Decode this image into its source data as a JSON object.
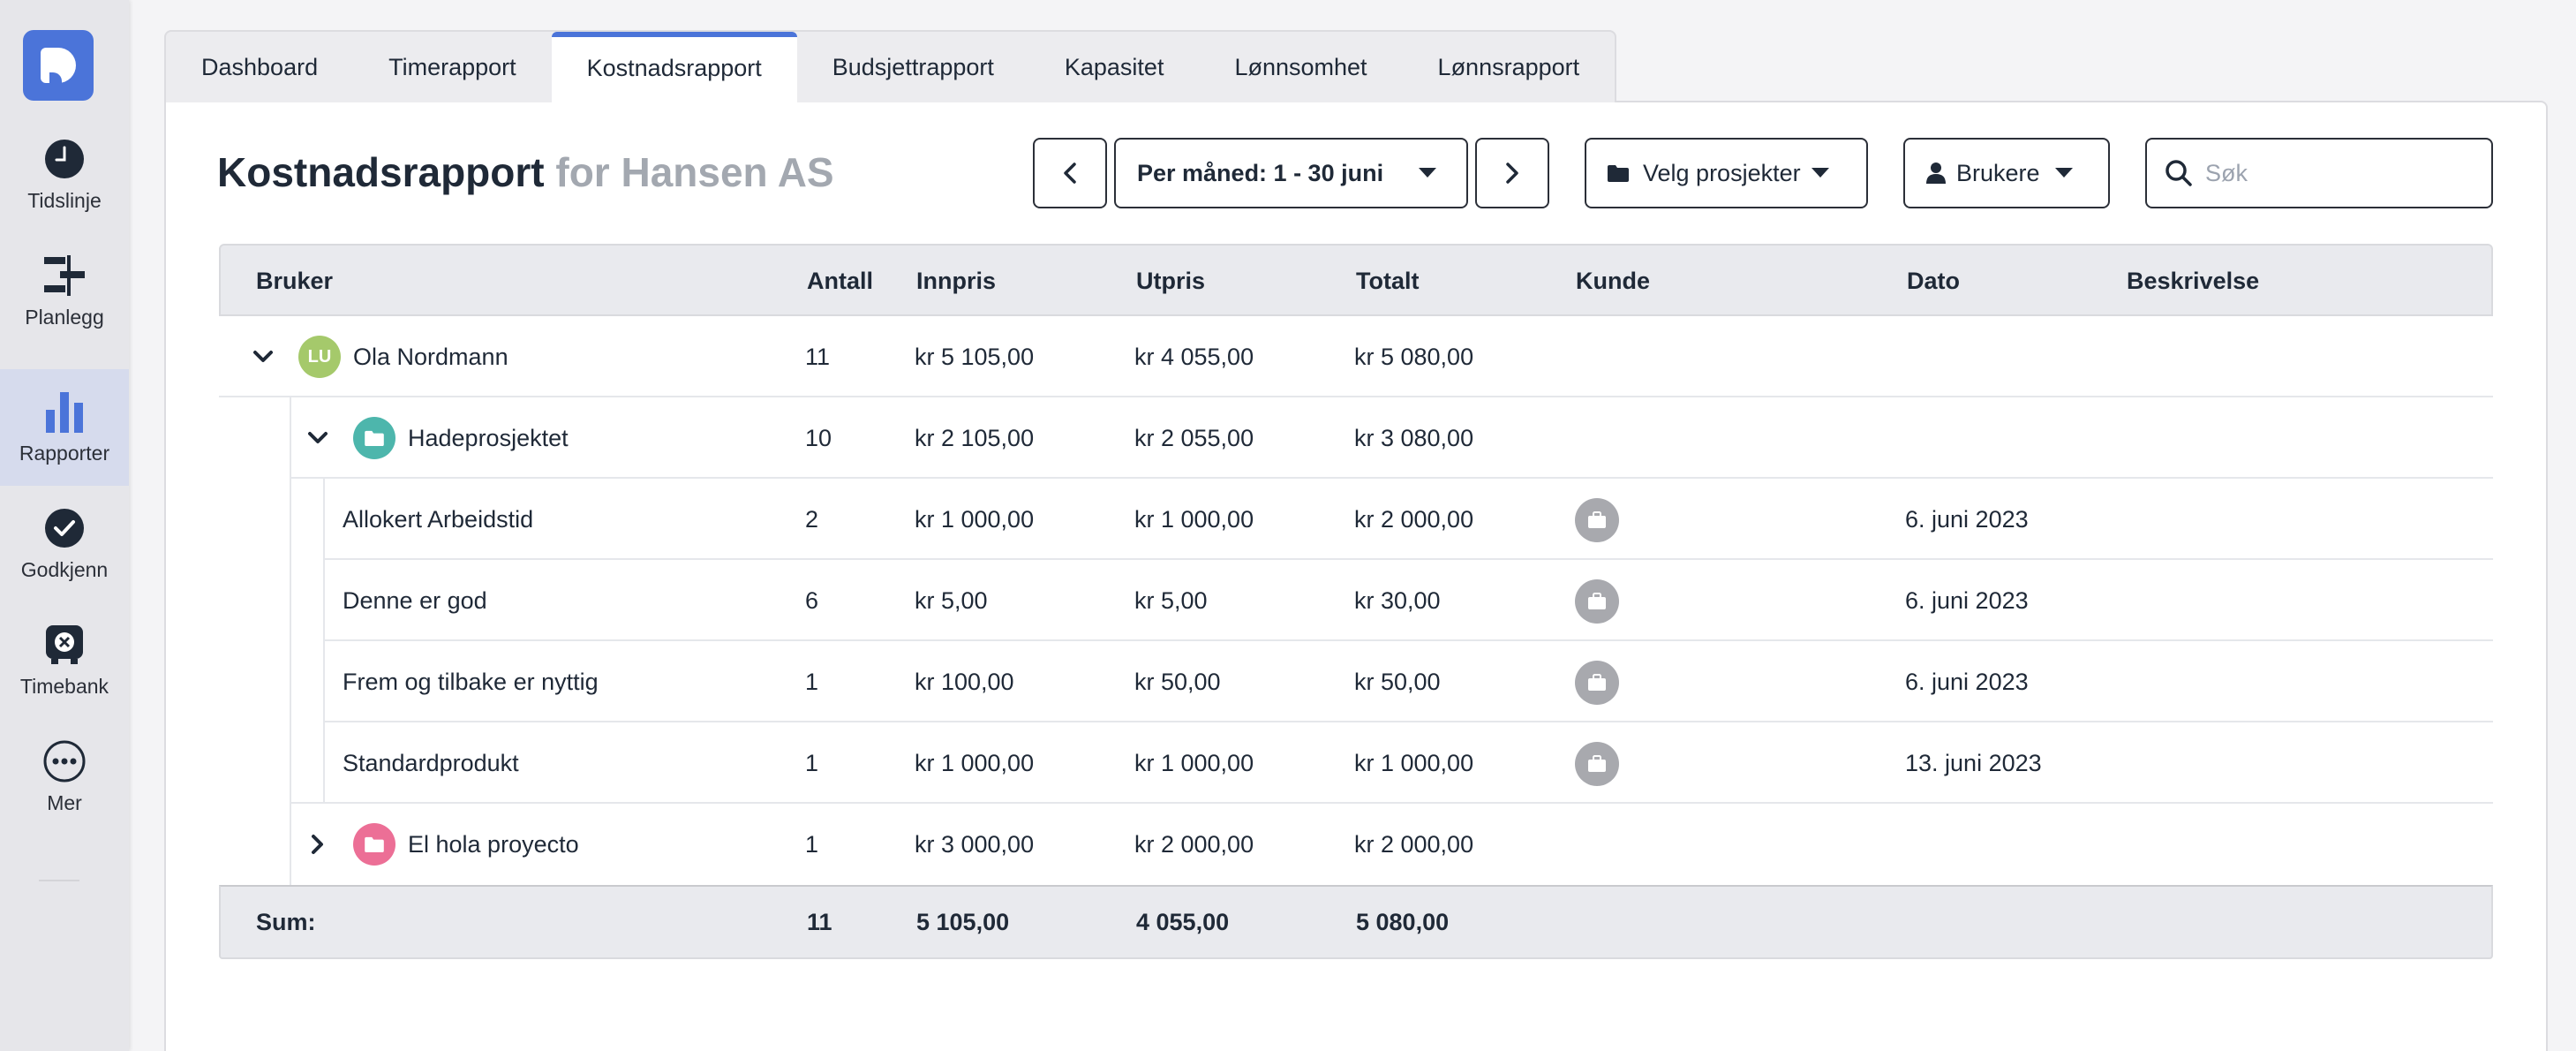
{
  "sidebar": {
    "items": [
      {
        "label": "Tidslinje",
        "icon": "clock-icon"
      },
      {
        "label": "Planlegg",
        "icon": "planner-icon"
      },
      {
        "label": "Rapporter",
        "icon": "bar-chart-icon",
        "active": true
      },
      {
        "label": "Godkjenn",
        "icon": "check-circle-icon"
      },
      {
        "label": "Timebank",
        "icon": "timebank-icon"
      },
      {
        "label": "Mer",
        "icon": "more-dots-icon"
      }
    ]
  },
  "tabs": [
    {
      "label": "Dashboard"
    },
    {
      "label": "Timerapport"
    },
    {
      "label": "Kostnadsrapport",
      "active": true
    },
    {
      "label": "Budsjettrapport"
    },
    {
      "label": "Kapasitet"
    },
    {
      "label": "Lønnsomhet"
    },
    {
      "label": "Lønnsrapport"
    }
  ],
  "header": {
    "title": "Kostnadsrapport",
    "subtitle": "for Hansen AS"
  },
  "filters": {
    "period": "Per måned: 1 - 30 juni",
    "projects": "Velg prosjekter",
    "users": "Brukere",
    "search_placeholder": "Søk"
  },
  "table": {
    "columns": [
      "Bruker",
      "Antall",
      "Innpris",
      "Utpris",
      "Totalt",
      "Kunde",
      "Dato",
      "Beskrivelse"
    ],
    "user_row": {
      "initials": "LU",
      "name": "Ola Nordmann",
      "antall": "11",
      "innpris": "kr 5 105,00",
      "utpris": "kr 4 055,00",
      "totalt": "kr 5 080,00"
    },
    "project_row": {
      "name": "Hadeprosjektet",
      "antall": "10",
      "innpris": "kr 2 105,00",
      "utpris": "kr 2 055,00",
      "totalt": "kr 3 080,00"
    },
    "items": [
      {
        "name": "Allokert Arbeidstid",
        "antall": "2",
        "innpris": "kr 1 000,00",
        "utpris": "kr 1 000,00",
        "totalt": "kr 2 000,00",
        "dato": "6. juni 2023"
      },
      {
        "name": "Denne er god",
        "antall": "6",
        "innpris": "kr 5,00",
        "utpris": "kr 5,00",
        "totalt": "kr 30,00",
        "dato": "6. juni 2023"
      },
      {
        "name": "Frem og tilbake er nyttig",
        "antall": "1",
        "innpris": "kr 100,00",
        "utpris": "kr 50,00",
        "totalt": "kr 50,00",
        "dato": "6. juni 2023"
      },
      {
        "name": "Standardprodukt",
        "antall": "1",
        "innpris": "kr 1 000,00",
        "utpris": "kr 1 000,00",
        "totalt": "kr 1 000,00",
        "dato": "13. juni 2023"
      }
    ],
    "project_row_2": {
      "name": "El hola proyecto",
      "antall": "1",
      "innpris": "kr 3 000,00",
      "utpris": "kr 2 000,00",
      "totalt": "kr 2 000,00"
    },
    "sum": {
      "label": "Sum:",
      "antall": "11",
      "innpris": "5 105,00",
      "utpris": "4 055,00",
      "totalt": "5 080,00"
    }
  },
  "colors": {
    "accent": "#4b74d9",
    "avatar_user": "#a5c96b",
    "project_teal": "#4db6ac",
    "project_pink": "#ec6f96"
  }
}
